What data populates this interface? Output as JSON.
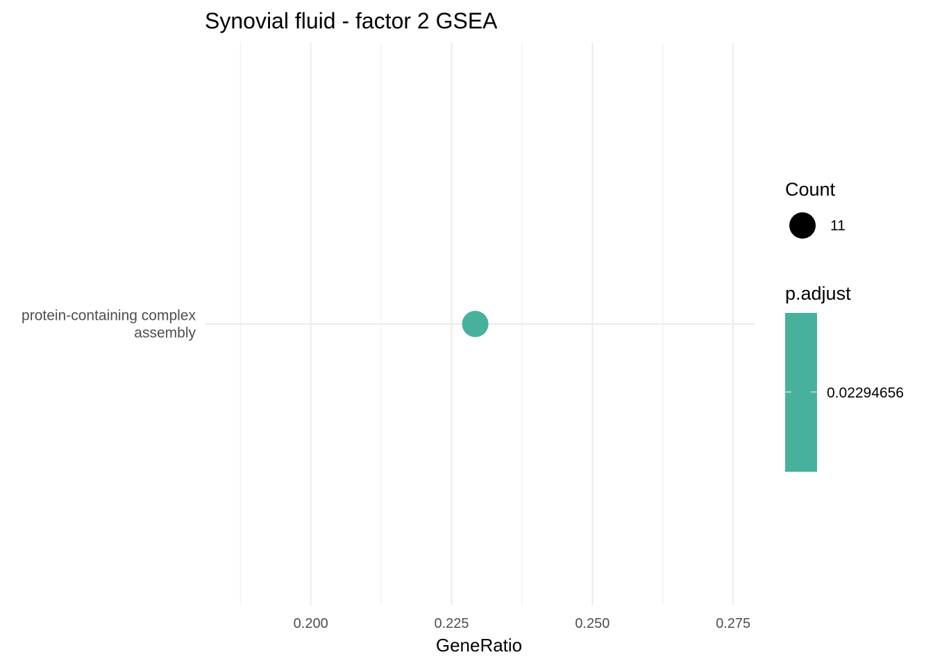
{
  "chart_data": {
    "type": "scatter",
    "title": "Synovial fluid - factor 2 GSEA",
    "xlabel": "GeneRatio",
    "ylabel": "",
    "xlim": [
      0.1813,
      0.2788
    ],
    "x_ticks": [
      0.2,
      0.225,
      0.25,
      0.275
    ],
    "x_tick_labels": [
      "0.200",
      "0.225",
      "0.250",
      "0.275"
    ],
    "categories": [
      {
        "label_lines": [
          "protein-containing complex",
          "assembly"
        ]
      }
    ],
    "points": [
      {
        "category": 0,
        "x": 0.2292,
        "count": 11,
        "p_adjust": 0.02294656,
        "color": "#47b19e"
      }
    ],
    "grid": true,
    "legend_position": "right",
    "legend": {
      "size": {
        "title": "Count",
        "entries": [
          {
            "label": "11",
            "color": "#000000"
          }
        ]
      },
      "color": {
        "title": "p.adjust",
        "label": "0.02294656",
        "color": "#47b19e"
      }
    }
  }
}
